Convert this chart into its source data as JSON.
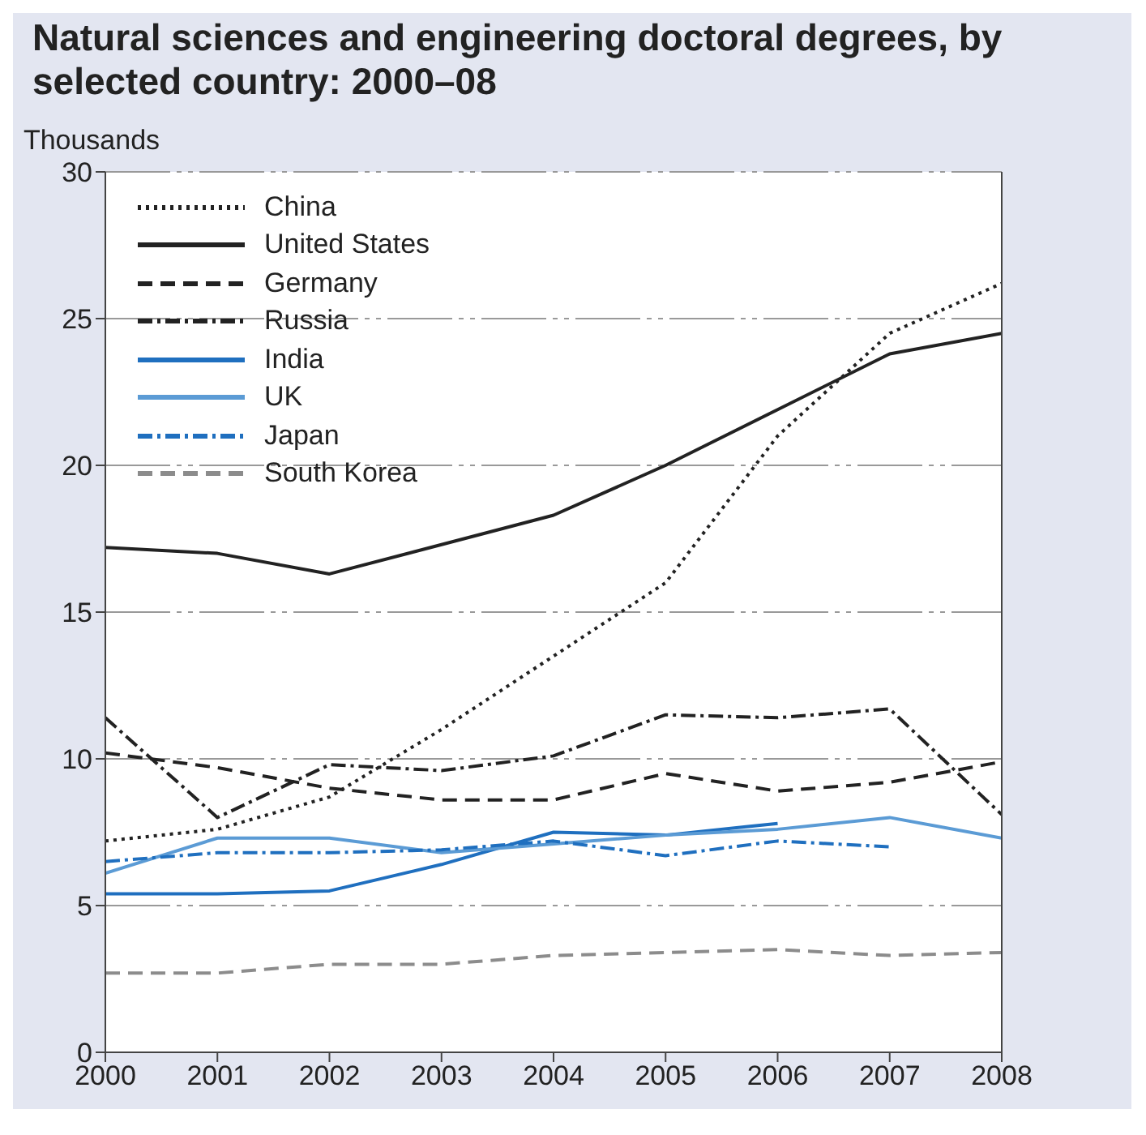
{
  "chart_data": {
    "type": "line",
    "title": "Natural sciences and engineering doctoral degrees, by selected country: 2000–08",
    "ylabel": "Thousands",
    "x": [
      2000,
      2001,
      2002,
      2003,
      2004,
      2005,
      2006,
      2007,
      2008
    ],
    "xlim": [
      2000,
      2008
    ],
    "xticks": [
      2000,
      2001,
      2002,
      2003,
      2004,
      2005,
      2006,
      2007,
      2008
    ],
    "ylim": [
      0,
      30
    ],
    "yticks": [
      0,
      5,
      10,
      15,
      20,
      25,
      30
    ],
    "grid": "y",
    "legend": "top left",
    "marker": "none",
    "series": [
      {
        "name": "China",
        "color": "#222222",
        "line_style": "dotted",
        "values": [
          7.2,
          7.6,
          8.7,
          11.0,
          13.5,
          16.0,
          21.0,
          24.5,
          26.2
        ]
      },
      {
        "name": "United States",
        "color": "#222222",
        "line_style": "solid",
        "values": [
          17.2,
          17.0,
          16.3,
          17.3,
          18.3,
          20.0,
          21.9,
          23.8,
          24.5
        ]
      },
      {
        "name": "Germany",
        "color": "#222222",
        "line_style": "dashed",
        "values": [
          10.2,
          9.7,
          9.0,
          8.6,
          8.6,
          9.5,
          8.9,
          9.2,
          9.9
        ]
      },
      {
        "name": "Russia",
        "color": "#222222",
        "line_style": "dashdot",
        "values": [
          11.4,
          8.0,
          9.8,
          9.6,
          10.1,
          11.5,
          11.4,
          11.7,
          8.1
        ]
      },
      {
        "name": "India",
        "color": "#1f6fbf",
        "line_style": "solid",
        "values": [
          5.4,
          5.4,
          5.5,
          6.4,
          7.5,
          7.4,
          7.8,
          null,
          null
        ]
      },
      {
        "name": "UK",
        "color": "#5b9bd5",
        "line_style": "solid",
        "values": [
          6.1,
          7.3,
          7.3,
          6.8,
          7.1,
          7.4,
          7.6,
          8.0,
          7.3
        ]
      },
      {
        "name": "Japan",
        "color": "#1f6fbf",
        "line_style": "dashdot",
        "values": [
          6.5,
          6.8,
          6.8,
          6.9,
          7.2,
          6.7,
          7.2,
          7.0,
          null
        ]
      },
      {
        "name": "South Korea",
        "color": "#8c8c8c",
        "line_style": "dashed",
        "values": [
          2.7,
          2.7,
          3.0,
          3.0,
          3.3,
          3.4,
          3.5,
          3.3,
          3.4
        ]
      }
    ]
  }
}
